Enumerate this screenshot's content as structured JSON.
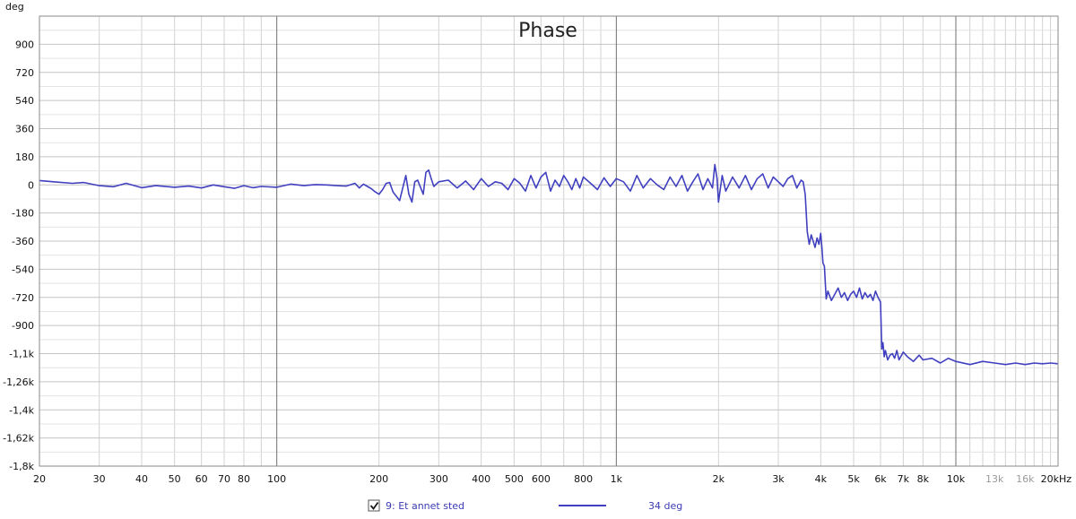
{
  "chart_data": {
    "type": "line",
    "title": "Phase",
    "y_unit_label": "deg",
    "x_scale": "log",
    "xlim": [
      20,
      20000
    ],
    "ylim": [
      -1800,
      1080
    ],
    "grid": true,
    "x_major_ticks": [
      100,
      1000,
      10000
    ],
    "x_minor_ticks": [
      20,
      30,
      40,
      50,
      60,
      70,
      80,
      90,
      200,
      300,
      400,
      500,
      600,
      700,
      800,
      900,
      2000,
      3000,
      4000,
      5000,
      6000,
      7000,
      8000,
      9000,
      11000,
      12000,
      13000,
      14000,
      15000,
      16000,
      17000,
      18000,
      19000
    ],
    "x_tick_labels": [
      {
        "value": 20,
        "label": "20",
        "faint": false
      },
      {
        "value": 30,
        "label": "30",
        "faint": false
      },
      {
        "value": 40,
        "label": "40",
        "faint": false
      },
      {
        "value": 50,
        "label": "50",
        "faint": false
      },
      {
        "value": 60,
        "label": "60",
        "faint": false
      },
      {
        "value": 70,
        "label": "70",
        "faint": false
      },
      {
        "value": 80,
        "label": "80",
        "faint": false
      },
      {
        "value": 100,
        "label": "100",
        "faint": false
      },
      {
        "value": 200,
        "label": "200",
        "faint": false
      },
      {
        "value": 300,
        "label": "300",
        "faint": false
      },
      {
        "value": 400,
        "label": "400",
        "faint": false
      },
      {
        "value": 500,
        "label": "500",
        "faint": false
      },
      {
        "value": 600,
        "label": "600",
        "faint": false
      },
      {
        "value": 800,
        "label": "800",
        "faint": false
      },
      {
        "value": 1000,
        "label": "1k",
        "faint": false
      },
      {
        "value": 2000,
        "label": "2k",
        "faint": false
      },
      {
        "value": 3000,
        "label": "3k",
        "faint": false
      },
      {
        "value": 4000,
        "label": "4k",
        "faint": false
      },
      {
        "value": 5000,
        "label": "5k",
        "faint": false
      },
      {
        "value": 6000,
        "label": "6k",
        "faint": false
      },
      {
        "value": 7000,
        "label": "7k",
        "faint": false
      },
      {
        "value": 8000,
        "label": "8k",
        "faint": false
      },
      {
        "value": 10000,
        "label": "10k",
        "faint": false
      },
      {
        "value": 13000,
        "label": "13k",
        "faint": true
      },
      {
        "value": 16000,
        "label": "16k",
        "faint": true
      },
      {
        "value": 20000,
        "label": "20kHz",
        "faint": false
      }
    ],
    "y_ticks": [
      {
        "value": 900,
        "label": "900"
      },
      {
        "value": 720,
        "label": "720"
      },
      {
        "value": 540,
        "label": "540"
      },
      {
        "value": 360,
        "label": "360"
      },
      {
        "value": 180,
        "label": "180"
      },
      {
        "value": 0,
        "label": "0"
      },
      {
        "value": -180,
        "label": "-180"
      },
      {
        "value": -360,
        "label": "-360"
      },
      {
        "value": -540,
        "label": "-540"
      },
      {
        "value": -720,
        "label": "-720"
      },
      {
        "value": -900,
        "label": "-900"
      },
      {
        "value": -1080,
        "label": "-1,1k"
      },
      {
        "value": -1260,
        "label": "-1,26k"
      },
      {
        "value": -1440,
        "label": "-1,4k"
      },
      {
        "value": -1620,
        "label": "-1,62k"
      },
      {
        "value": -1800,
        "label": "-1,8k"
      }
    ],
    "series": [
      {
        "name": "9: Et annet sted",
        "color": "#4040c0",
        "x": [
          20,
          22,
          25,
          27,
          30,
          33,
          36,
          40,
          44,
          50,
          55,
          60,
          65,
          70,
          75,
          80,
          85,
          90,
          100,
          110,
          120,
          130,
          140,
          150,
          160,
          170,
          175,
          180,
          185,
          190,
          195,
          200,
          205,
          210,
          215,
          220,
          230,
          240,
          245,
          250,
          255,
          260,
          270,
          275,
          280,
          285,
          290,
          300,
          320,
          340,
          360,
          380,
          400,
          420,
          440,
          460,
          480,
          500,
          520,
          540,
          560,
          580,
          600,
          620,
          640,
          660,
          680,
          700,
          720,
          740,
          760,
          780,
          800,
          840,
          880,
          920,
          960,
          1000,
          1050,
          1100,
          1150,
          1200,
          1260,
          1320,
          1380,
          1440,
          1500,
          1560,
          1620,
          1680,
          1740,
          1800,
          1860,
          1920,
          1950,
          1980,
          2000,
          2050,
          2100,
          2200,
          2300,
          2400,
          2500,
          2600,
          2700,
          2800,
          2900,
          3000,
          3100,
          3200,
          3300,
          3400,
          3500,
          3550,
          3600,
          3650,
          3700,
          3750,
          3800,
          3850,
          3900,
          3950,
          4000,
          4030,
          4060,
          4100,
          4150,
          4200,
          4300,
          4400,
          4500,
          4600,
          4700,
          4800,
          4900,
          5000,
          5100,
          5200,
          5300,
          5400,
          5500,
          5600,
          5700,
          5800,
          5900,
          6000,
          6050,
          6100,
          6150,
          6200,
          6300,
          6400,
          6500,
          6600,
          6700,
          6800,
          7000,
          7200,
          7500,
          7800,
          8000,
          8500,
          9000,
          9500,
          10000,
          11000,
          12000,
          13000,
          14000,
          15000,
          16000,
          17000,
          18000,
          19000,
          20000
        ],
        "y": [
          28,
          20,
          10,
          15,
          -5,
          -12,
          10,
          -18,
          -5,
          -15,
          -8,
          -20,
          0,
          -12,
          -22,
          -5,
          -18,
          -10,
          -15,
          5,
          -5,
          2,
          0,
          -5,
          -8,
          10,
          -20,
          5,
          -10,
          -25,
          -45,
          -60,
          -30,
          10,
          15,
          -45,
          -100,
          60,
          -60,
          -110,
          20,
          30,
          -60,
          80,
          95,
          40,
          -10,
          20,
          30,
          -20,
          25,
          -30,
          40,
          -10,
          20,
          10,
          -30,
          40,
          10,
          -40,
          60,
          -20,
          50,
          80,
          -40,
          30,
          -10,
          60,
          20,
          -30,
          40,
          -20,
          50,
          10,
          -30,
          45,
          -10,
          40,
          20,
          -40,
          60,
          -20,
          40,
          0,
          -30,
          50,
          -10,
          60,
          -40,
          20,
          70,
          -30,
          40,
          -20,
          130,
          40,
          -110,
          60,
          -40,
          50,
          -20,
          60,
          -30,
          40,
          70,
          -20,
          50,
          20,
          -10,
          40,
          60,
          -20,
          30,
          20,
          -60,
          -300,
          -380,
          -320,
          -360,
          -400,
          -340,
          -380,
          -310,
          -400,
          -500,
          -520,
          -730,
          -680,
          -740,
          -700,
          -660,
          -720,
          -690,
          -740,
          -700,
          -680,
          -720,
          -660,
          -730,
          -690,
          -720,
          -700,
          -740,
          -680,
          -720,
          -750,
          -1050,
          -1010,
          -1100,
          -1060,
          -1120,
          -1090,
          -1080,
          -1110,
          -1060,
          -1120,
          -1070,
          -1100,
          -1130,
          -1090,
          -1120,
          -1110,
          -1140,
          -1110,
          -1130,
          -1150,
          -1130,
          -1140,
          -1150,
          -1140,
          -1150,
          -1140,
          -1145,
          -1140,
          -1145
        ]
      }
    ]
  },
  "legend": {
    "checkbox_checked": true,
    "label": "9: Et annet sted",
    "smoothing_label": "34 deg"
  }
}
